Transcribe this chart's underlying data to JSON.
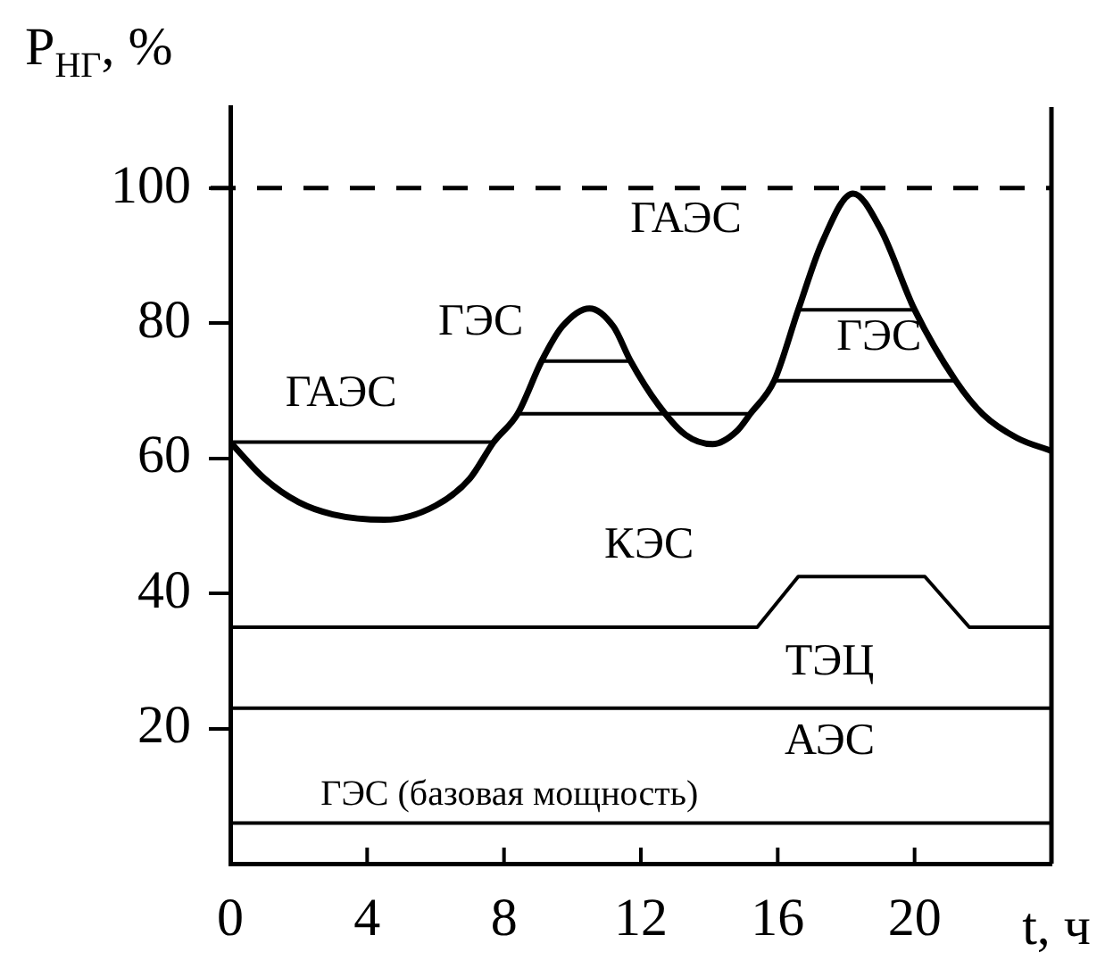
{
  "chart_data": {
    "type": "line",
    "xlabel": "t, ч",
    "ylabel": "P$_{НГ}$, %",
    "xlim": [
      0,
      24
    ],
    "xticks": [
      0,
      4,
      8,
      12,
      16,
      20
    ],
    "ylim": [
      0,
      112
    ],
    "yticks": [
      20,
      40,
      60,
      80,
      100
    ],
    "grid": false,
    "legend": false,
    "marker": "none",
    "line_style": "solid",
    "series": [
      {
        "color": "#000000",
        "x": [
          0,
          1,
          2,
          3,
          4.5,
          6,
          7,
          7.7,
          8.4,
          9.1,
          9.7,
          10.5,
          11.2,
          11.7,
          12.5,
          13.3,
          14.1,
          14.8,
          15.2,
          15.9,
          16.6,
          17.3,
          18.2,
          19,
          20,
          21.2,
          22,
          23,
          24
        ],
        "values": [
          62.4,
          57,
          53.5,
          51.7,
          50.9,
          53,
          57,
          62.4,
          66.6,
          74.4,
          79.5,
          82.2,
          79.5,
          74.4,
          68,
          63.5,
          62.1,
          64,
          66.6,
          71.5,
          82,
          92,
          99.2,
          94,
          82,
          71.5,
          66.5,
          63,
          61.1
        ]
      },
      {
        "color": "#000000",
        "x": [
          0,
          15.4,
          16.6,
          20.3,
          21.6,
          24
        ],
        "values": [
          35,
          35,
          42.5,
          42.5,
          35,
          35
        ]
      },
      {
        "color": "#000000",
        "x": [
          0,
          24
        ],
        "values": [
          23,
          23
        ]
      },
      {
        "color": "#000000",
        "x": [
          0,
          24
        ],
        "values": [
          6,
          6
        ]
      },
      {
        "color": "#000000",
        "x": [
          0,
          7.7
        ],
        "values": [
          62.4,
          62.4
        ]
      },
      {
        "color": "#000000",
        "x": [
          8.4,
          15.2
        ],
        "values": [
          66.6,
          66.6
        ]
      },
      {
        "color": "#000000",
        "x": [
          9.1,
          11.7
        ],
        "values": [
          74.4,
          74.4
        ]
      },
      {
        "color": "#000000",
        "x": [
          15.9,
          21.2
        ],
        "values": [
          71.5,
          71.5
        ]
      },
      {
        "color": "#000000",
        "x": [
          16.6,
          20
        ],
        "values": [
          82,
          82
        ]
      }
    ],
    "ref_lines": [
      {
        "axis": "y",
        "value": 100,
        "line_style": "dashed",
        "color": "#000000"
      }
    ],
    "annotations": [
      "ГАЭС",
      "ГЭС",
      "ГАЭС",
      "ГЭС",
      "КЭС",
      "ТЭЦ",
      "АЭС",
      "ГЭС (базовая мощность)"
    ]
  }
}
